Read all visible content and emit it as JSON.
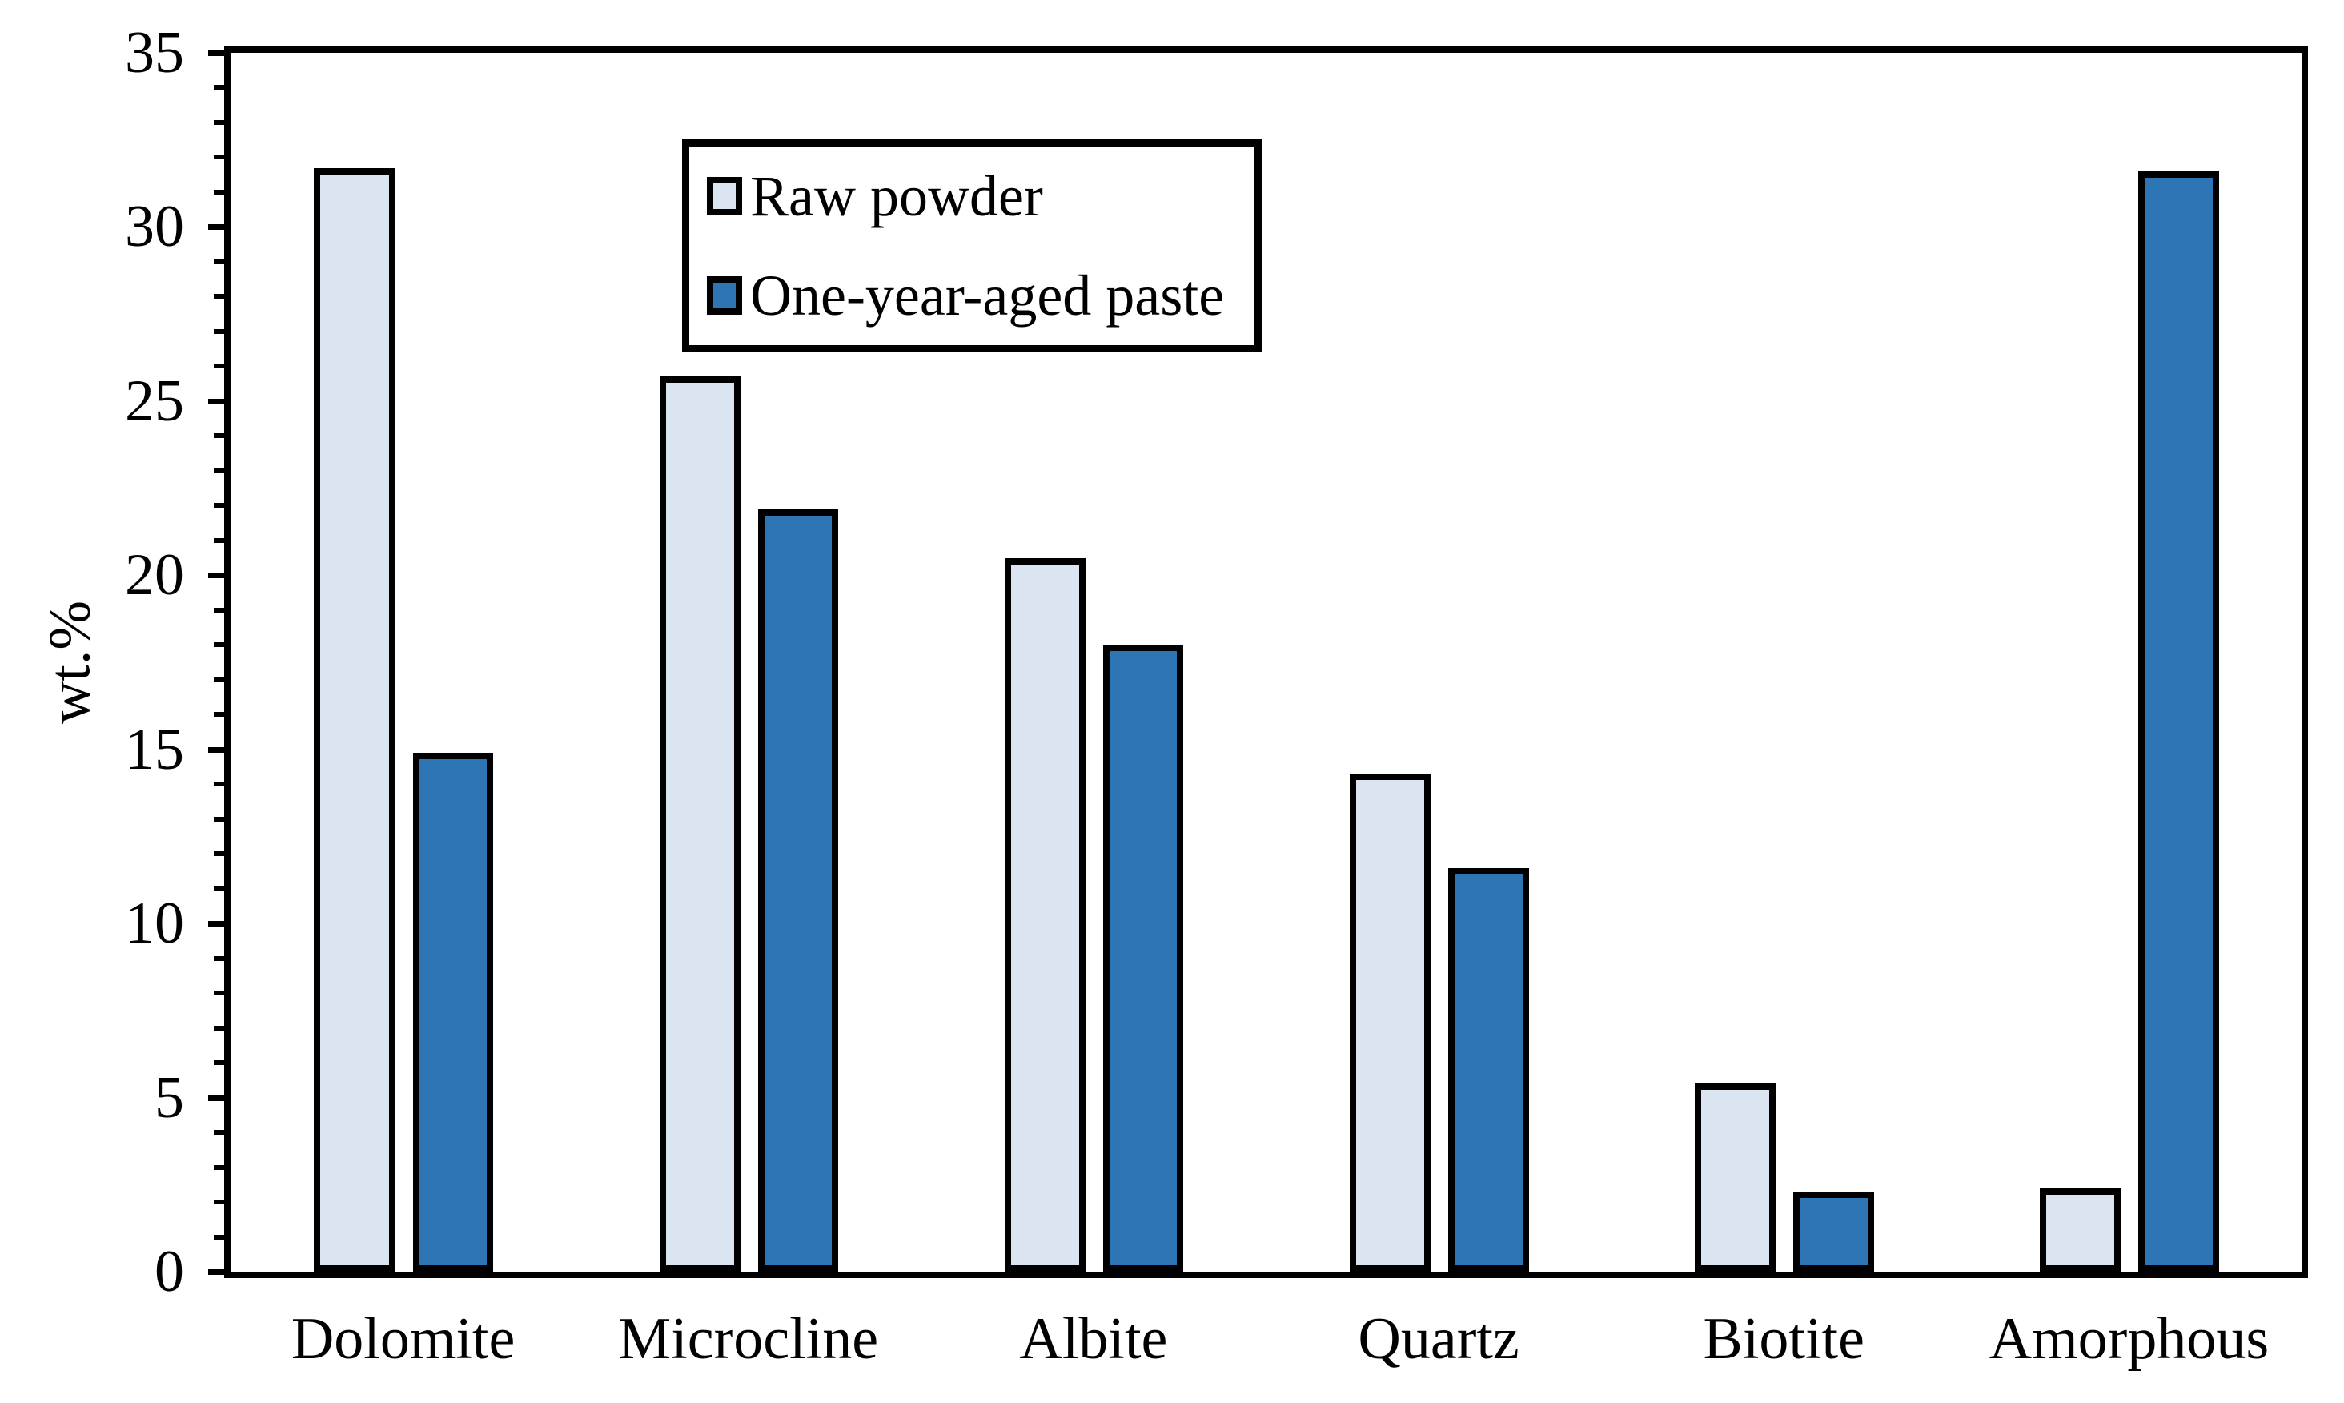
{
  "chart_data": {
    "type": "bar",
    "title": "",
    "ylabel": "wt.%",
    "xlabel": "",
    "categories": [
      "Dolomite",
      "Microcline",
      "Albite",
      "Quartz",
      "Biotite",
      "Amorphous"
    ],
    "series": [
      {
        "name": "Raw powder",
        "color": "#dbe5f1",
        "values": [
          31.7,
          25.7,
          20.5,
          14.3,
          5.4,
          2.4
        ]
      },
      {
        "name": "One-year-aged paste",
        "color": "#2e75b6",
        "values": [
          14.9,
          21.9,
          18.0,
          11.6,
          2.3,
          31.6
        ]
      }
    ],
    "ylim": [
      0,
      35
    ],
    "y_major_step": 5,
    "y_minor_step": 1,
    "y_major_tick_labels": [
      "0",
      "5",
      "10",
      "15",
      "20",
      "25",
      "30",
      "35"
    ],
    "grid": "off",
    "legend_position": "upper-left-inside",
    "bar_outline_color": "#000000",
    "axis_color": "#000000",
    "background_color": "#ffffff"
  }
}
